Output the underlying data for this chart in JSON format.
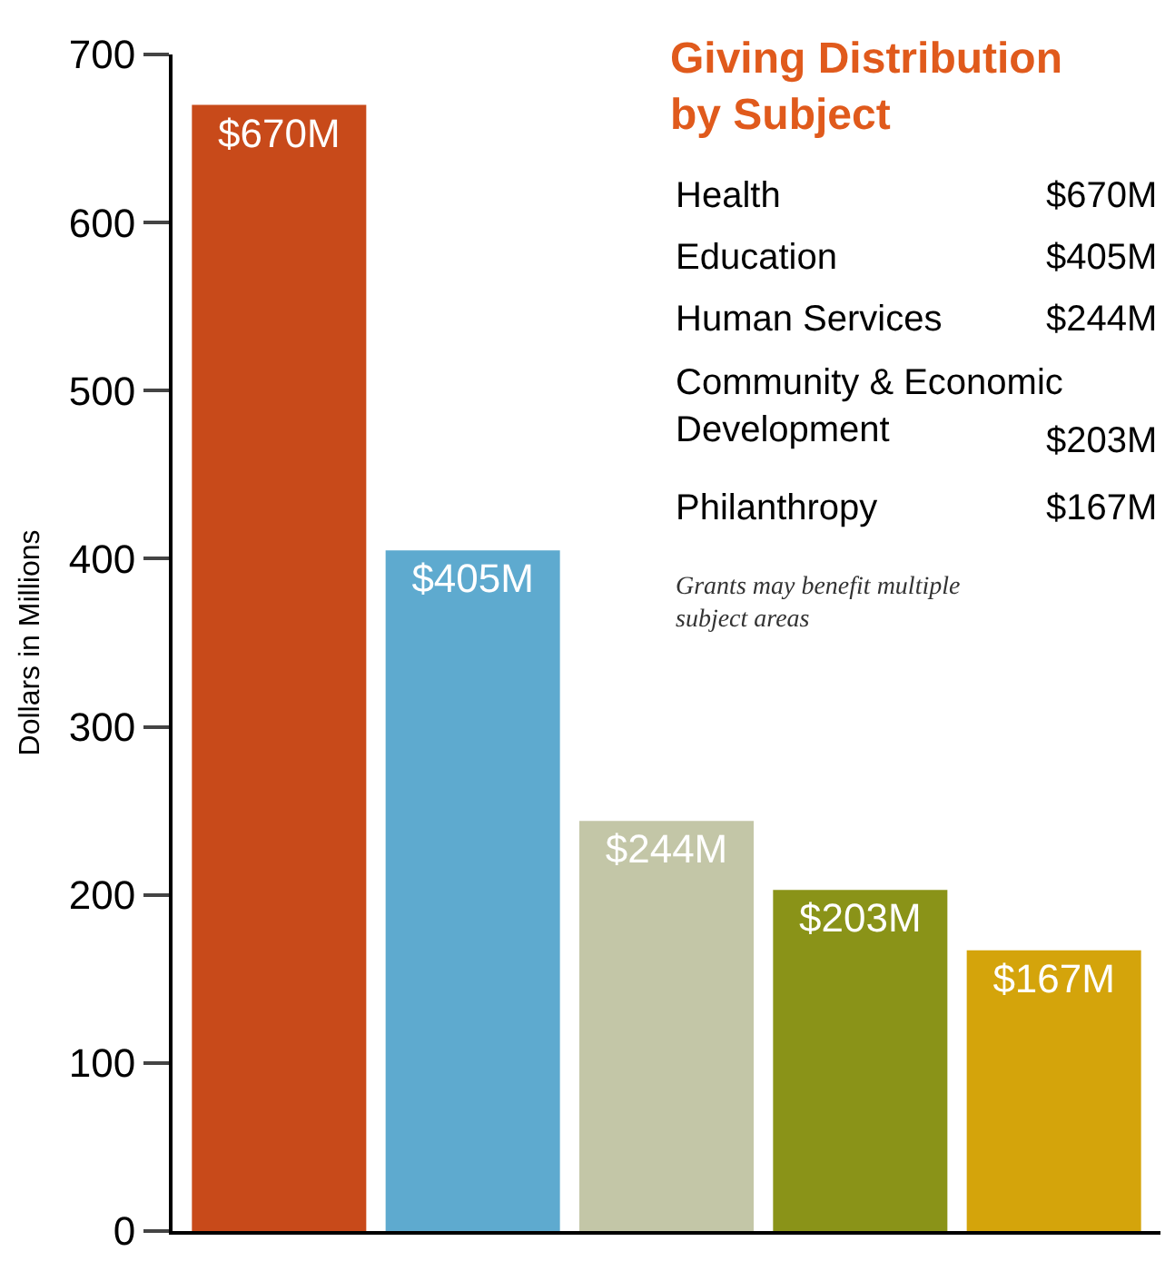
{
  "chart_data": {
    "type": "bar",
    "title": "Giving Distribution by Subject",
    "ylabel": "Dollars in Millions",
    "categories": [
      null,
      null,
      null,
      null,
      null
    ],
    "values": [
      670,
      405,
      244,
      203,
      167
    ],
    "colors": [
      "#c84a1a",
      "#5eaacf",
      "#c3c6a7",
      "#8a9318",
      "#d4a40b"
    ],
    "value_labels": [
      "$670M",
      "$405M",
      "$244M",
      "$203M",
      "$167M"
    ],
    "ylim": [
      0,
      700
    ],
    "yticks": [
      0,
      100,
      200,
      300,
      400,
      500,
      600,
      700
    ],
    "tick_labels": "y",
    "legend": false,
    "annotations": [
      "Health",
      "$670M",
      "Education",
      "$405M",
      "Human Services",
      "$244M",
      "Community & Economic Development",
      "$203M",
      "Philanthropy",
      "$167M",
      "Grants may benefit multiple subject areas"
    ]
  }
}
